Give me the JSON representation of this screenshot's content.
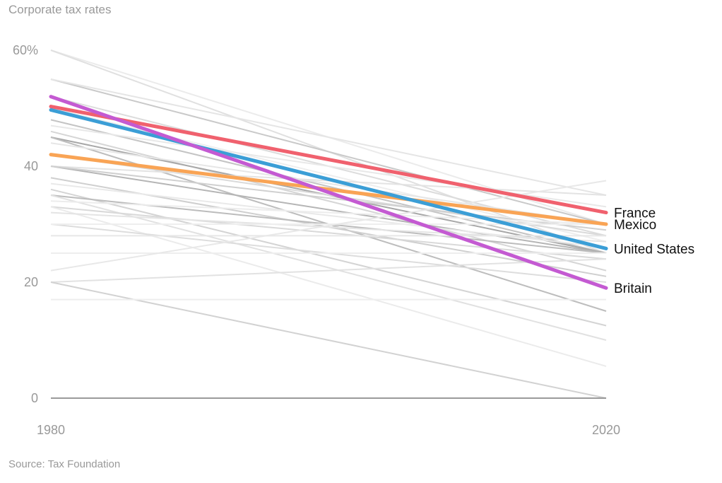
{
  "chart_data": {
    "type": "line",
    "title": "Corporate tax rates",
    "source": "Source: Tax Foundation",
    "x": [
      1980,
      2020
    ],
    "xlim": [
      1980,
      2020
    ],
    "ylim": [
      0,
      60
    ],
    "y_ticks": [
      {
        "value": 60,
        "label": "60%"
      },
      {
        "value": 40,
        "label": "40"
      },
      {
        "value": 20,
        "label": "20"
      },
      {
        "value": 0,
        "label": "0"
      }
    ],
    "x_ticks": [
      {
        "value": 1980,
        "label": "1980"
      },
      {
        "value": 2020,
        "label": "2020"
      }
    ],
    "grid": false,
    "series": [
      {
        "name": "France",
        "values": [
          50.3,
          32.0
        ],
        "color": "#f0616e"
      },
      {
        "name": "Mexico",
        "values": [
          42.0,
          30.0
        ],
        "color": "#f9a455"
      },
      {
        "name": "United States",
        "values": [
          49.7,
          25.8
        ],
        "color": "#3b9ed6"
      },
      {
        "name": "Britain",
        "values": [
          52.0,
          19.0
        ],
        "color": "#c45ad2"
      }
    ],
    "background_series": [
      {
        "values": [
          60.0,
          30.0
        ],
        "color": "#ebebeb"
      },
      {
        "values": [
          60.0,
          25.0
        ],
        "color": "#e0e0e0"
      },
      {
        "values": [
          55.0,
          30.0
        ],
        "color": "#c9c9c9"
      },
      {
        "values": [
          55.0,
          35.0
        ],
        "color": "#e5e5e5"
      },
      {
        "values": [
          52.0,
          28.0
        ],
        "color": "#dcdcdc"
      },
      {
        "values": [
          50.0,
          27.0
        ],
        "color": "#eeeeee"
      },
      {
        "values": [
          48.0,
          25.0
        ],
        "color": "#c4c4c4"
      },
      {
        "values": [
          47.0,
          33.0
        ],
        "color": "#e8e8e8"
      },
      {
        "values": [
          46.0,
          22.0
        ],
        "color": "#d6d6d6"
      },
      {
        "values": [
          45.0,
          25.0
        ],
        "color": "#a8a8a8"
      },
      {
        "values": [
          45.0,
          15.0
        ],
        "color": "#bdbdbd"
      },
      {
        "values": [
          44.0,
          30.0
        ],
        "color": "#e6e6e6"
      },
      {
        "values": [
          42.0,
          28.0
        ],
        "color": "#dadada"
      },
      {
        "values": [
          40.0,
          25.0
        ],
        "color": "#b5b5b5"
      },
      {
        "values": [
          40.0,
          35.0
        ],
        "color": "#e3e3e3"
      },
      {
        "values": [
          40.0,
          29.0
        ],
        "color": "#d0d0d0"
      },
      {
        "values": [
          38.0,
          21.0
        ],
        "color": "#cfcfcf"
      },
      {
        "values": [
          37.0,
          26.0
        ],
        "color": "#e9e9e9"
      },
      {
        "values": [
          36.0,
          12.5
        ],
        "color": "#d4d4d4"
      },
      {
        "values": [
          35.0,
          25.0
        ],
        "color": "#bcbcbc"
      },
      {
        "values": [
          35.0,
          10.0
        ],
        "color": "#e1e1e1"
      },
      {
        "values": [
          34.0,
          30.0
        ],
        "color": "#ececec"
      },
      {
        "values": [
          33.0,
          24.0
        ],
        "color": "#d9d9d9"
      },
      {
        "values": [
          33.0,
          5.5
        ],
        "color": "#ebebeb"
      },
      {
        "values": [
          32.0,
          27.0
        ],
        "color": "#e4e4e4"
      },
      {
        "values": [
          30.0,
          20.0
        ],
        "color": "#dddddd"
      },
      {
        "values": [
          30.0,
          30.0
        ],
        "color": "#eeeeee"
      },
      {
        "values": [
          28.0,
          28.0
        ],
        "color": "#e7e7e7"
      },
      {
        "values": [
          25.0,
          25.0
        ],
        "color": "#eeeeee"
      },
      {
        "values": [
          22.0,
          37.5
        ],
        "color": "#e8e8e8"
      },
      {
        "values": [
          20.0,
          24.0
        ],
        "color": "#e2e2e2"
      },
      {
        "values": [
          20.0,
          0.0
        ],
        "color": "#d2d2d2"
      },
      {
        "values": [
          17.0,
          17.0
        ],
        "color": "#eeeeee"
      }
    ]
  }
}
